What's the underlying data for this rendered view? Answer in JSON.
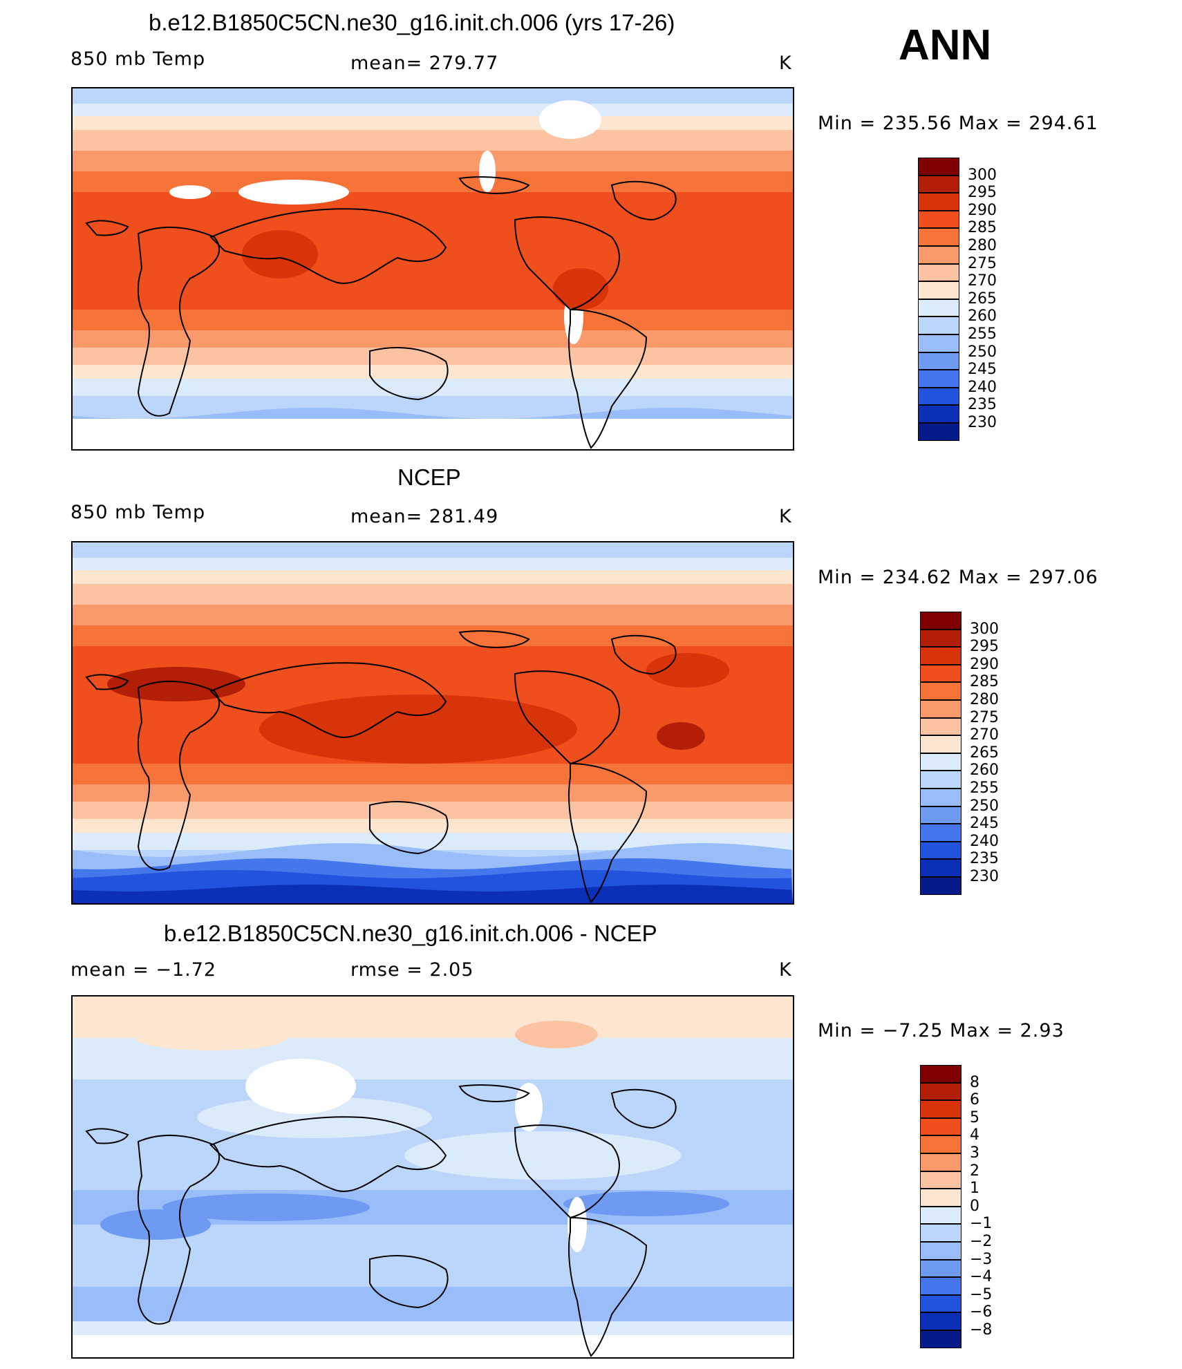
{
  "season": "ANN",
  "panels": [
    {
      "title": "b.e12.B1850C5CN.ne30_g16.init.ch.006 (yrs 17-26)",
      "left_label": "850 mb Temp",
      "center_label": "mean=  279.77",
      "units": "K",
      "minmax": "Min  =  235.56  Max  =  294.61",
      "palette": "temp",
      "colorbar_levels": [
        "300",
        "295",
        "290",
        "285",
        "280",
        "275",
        "270",
        "265",
        "260",
        "255",
        "250",
        "245",
        "240",
        "235",
        "230"
      ]
    },
    {
      "title": "NCEP",
      "left_label": "850 mb Temp",
      "center_label": "mean=  281.49",
      "units": "K",
      "minmax": "Min  =  234.62  Max  =  297.06",
      "palette": "temp",
      "colorbar_levels": [
        "300",
        "295",
        "290",
        "285",
        "280",
        "275",
        "270",
        "265",
        "260",
        "255",
        "250",
        "245",
        "240",
        "235",
        "230"
      ]
    },
    {
      "title": "b.e12.B1850C5CN.ne30_g16.init.ch.006 - NCEP",
      "left_label": "mean  =     −1.72",
      "center_label": "rmse  =     2.05",
      "units": "K",
      "minmax": "Min  =    −7.25  Max  =     2.93",
      "palette": "diff",
      "colorbar_levels": [
        "8",
        "6",
        "5",
        "4",
        "3",
        "2",
        "1",
        "0",
        "−1",
        "−2",
        "−3",
        "−4",
        "−5",
        "−6",
        "−8"
      ]
    }
  ],
  "colors": {
    "colorbar_16": [
      "#7f0000",
      "#b21e06",
      "#d8340a",
      "#ef4f1c",
      "#f6743a",
      "#fa9a6a",
      "#fcc3a2",
      "#fde6d0",
      "#dcebfa",
      "#bcd6fb",
      "#99bdf8",
      "#6e9af2",
      "#4676eb",
      "#2153dd",
      "#0b2fb7",
      "#061a8a"
    ]
  }
}
